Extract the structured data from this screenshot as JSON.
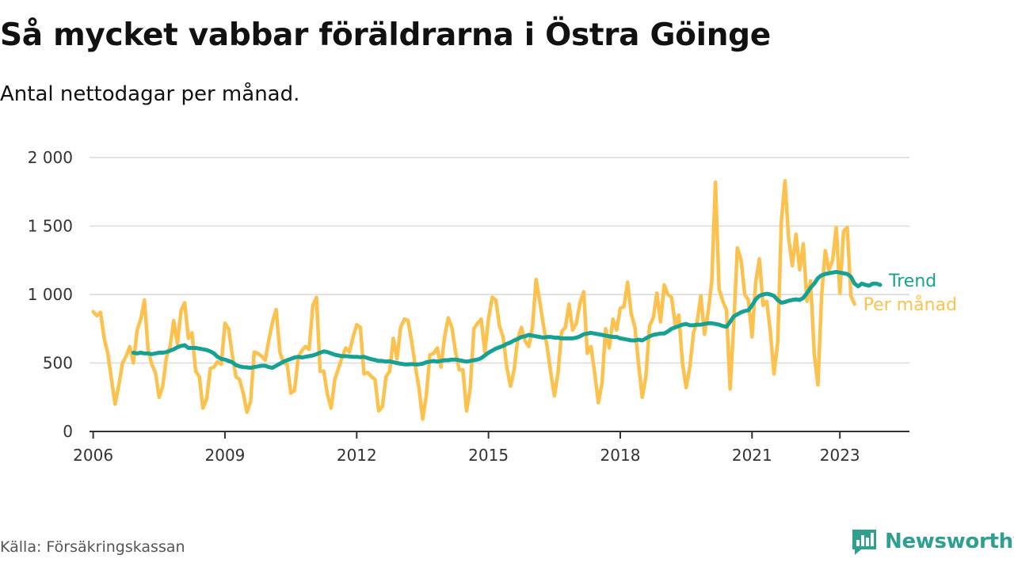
{
  "brand": {
    "name": "Newsworthy"
  },
  "source": "Källa: Försäkringskassan",
  "chart_data": {
    "type": "line",
    "title": "Så mycket vabbar föräldrarna i Östra Göinge",
    "subtitle": "Antal nettodagar per månad.",
    "xlabel": "",
    "ylabel": "",
    "ylim": [
      0,
      2000
    ],
    "xlim": [
      "2005-12",
      "2024-08"
    ],
    "y_ticks": [
      0,
      500,
      1000,
      1500,
      2000
    ],
    "y_tick_labels": [
      "0",
      "500",
      "1 000",
      "1 500",
      "2 000"
    ],
    "x_ticks": [
      "2006-01",
      "2009-01",
      "2012-01",
      "2015-01",
      "2018-01",
      "2021-01",
      "2023-01"
    ],
    "x_tick_labels": [
      "2006",
      "2009",
      "2012",
      "2015",
      "2018",
      "2021",
      "2023"
    ],
    "grid": "horizontal",
    "legend": "right-end labels",
    "colors": {
      "monthly": "#fdc14d",
      "trend": "#17a192"
    },
    "series": [
      {
        "name": "Per månad",
        "start": "2006-01",
        "values": [
          875,
          845,
          870,
          680,
          570,
          380,
          200,
          340,
          500,
          550,
          620,
          500,
          740,
          820,
          960,
          600,
          490,
          430,
          250,
          330,
          540,
          620,
          810,
          640,
          880,
          940,
          680,
          720,
          440,
          400,
          170,
          240,
          460,
          470,
          510,
          490,
          790,
          750,
          560,
          400,
          380,
          280,
          140,
          220,
          580,
          570,
          550,
          520,
          670,
          800,
          890,
          580,
          500,
          490,
          280,
          300,
          540,
          590,
          620,
          600,
          920,
          980,
          440,
          440,
          270,
          170,
          380,
          460,
          540,
          610,
          580,
          690,
          780,
          760,
          420,
          430,
          400,
          380,
          150,
          180,
          400,
          440,
          680,
          530,
          760,
          820,
          810,
          660,
          480,
          320,
          90,
          260,
          560,
          570,
          610,
          470,
          690,
          830,
          760,
          580,
          450,
          450,
          150,
          310,
          750,
          790,
          820,
          580,
          820,
          980,
          960,
          770,
          690,
          470,
          330,
          450,
          680,
          760,
          660,
          620,
          760,
          1110,
          950,
          780,
          620,
          430,
          260,
          430,
          730,
          760,
          930,
          740,
          790,
          940,
          1020,
          570,
          620,
          430,
          210,
          350,
          750,
          610,
          820,
          740,
          900,
          910,
          1090,
          860,
          760,
          490,
          250,
          400,
          770,
          830,
          1010,
          800,
          1070,
          1000,
          980,
          780,
          850,
          500,
          320,
          470,
          720,
          800,
          990,
          710,
          870,
          1100,
          1820,
          1040,
          950,
          890,
          310,
          780,
          1340,
          1250,
          1000,
          960,
          690,
          1090,
          1260,
          920,
          950,
          730,
          420,
          650,
          1530,
          1830,
          1410,
          1210,
          1440,
          1180,
          1370,
          950,
          1100,
          560,
          340,
          990,
          1320,
          1180,
          1250,
          1490,
          1010,
          1460,
          1490,
          990,
          930
        ]
      },
      {
        "name": "Trend",
        "start": "2006-12",
        "values": [
          575,
          570,
          575,
          570,
          570,
          565,
          570,
          575,
          575,
          580,
          590,
          600,
          615,
          625,
          630,
          610,
          610,
          610,
          605,
          600,
          595,
          585,
          570,
          545,
          530,
          525,
          515,
          505,
          485,
          475,
          470,
          468,
          465,
          470,
          475,
          480,
          480,
          470,
          465,
          480,
          495,
          510,
          520,
          530,
          540,
          545,
          540,
          545,
          550,
          555,
          565,
          575,
          585,
          580,
          570,
          560,
          555,
          550,
          550,
          548,
          545,
          545,
          542,
          545,
          535,
          528,
          522,
          515,
          515,
          510,
          512,
          505,
          500,
          495,
          490,
          490,
          492,
          490,
          490,
          495,
          505,
          510,
          515,
          510,
          515,
          520,
          520,
          525,
          525,
          520,
          515,
          510,
          515,
          520,
          525,
          535,
          555,
          575,
          590,
          605,
          615,
          625,
          640,
          650,
          665,
          675,
          690,
          695,
          705,
          700,
          695,
          690,
          685,
          690,
          690,
          685,
          685,
          680,
          680,
          680,
          680,
          685,
          695,
          710,
          715,
          720,
          715,
          710,
          705,
          700,
          695,
          690,
          690,
          680,
          675,
          670,
          665,
          665,
          670,
          665,
          680,
          695,
          705,
          710,
          715,
          715,
          730,
          750,
          760,
          770,
          780,
          785,
          775,
          775,
          780,
          780,
          785,
          790,
          790,
          785,
          780,
          770,
          765,
          800,
          840,
          855,
          870,
          880,
          885,
          920,
          965,
          990,
          1000,
          1005,
          1000,
          990,
          960,
          940,
          945,
          955,
          960,
          965,
          960,
          975,
          1010,
          1050,
          1080,
          1120,
          1140,
          1150,
          1155,
          1160,
          1165,
          1160,
          1155,
          1150,
          1130,
          1080,
          1060,
          1080,
          1070,
          1065,
          1080,
          1080,
          1070
        ]
      }
    ]
  }
}
